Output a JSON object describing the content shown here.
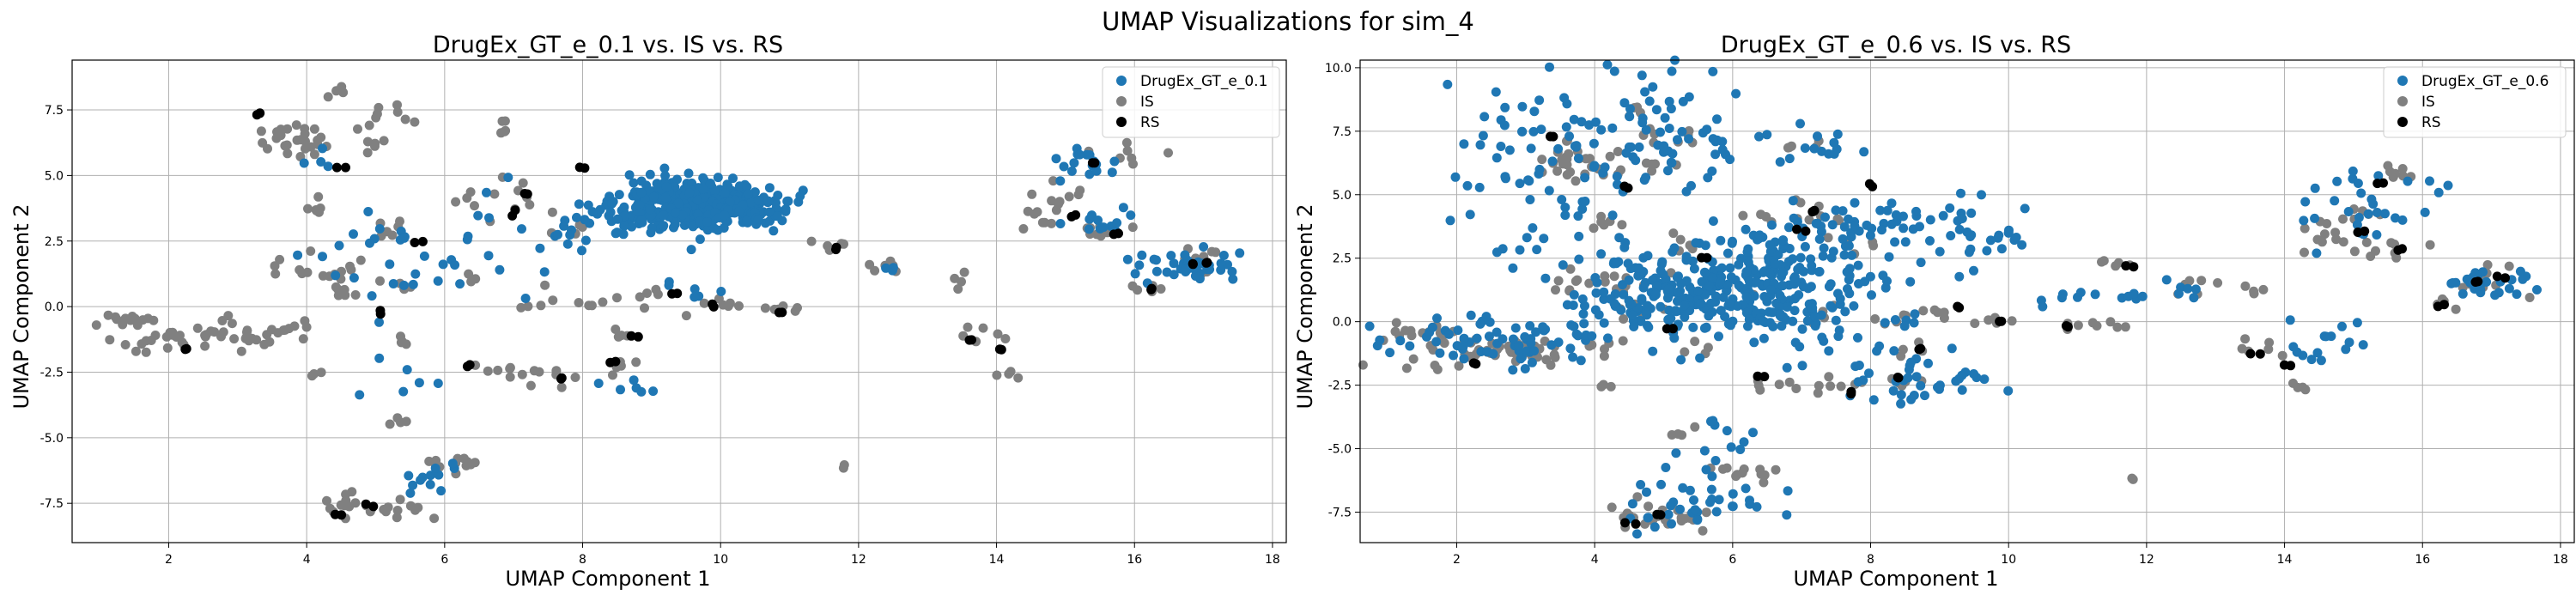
{
  "figure": {
    "title": "UMAP Visualizations for sim_4",
    "colors": {
      "primary": "#1f77b4",
      "IS": "#808080",
      "RS": "#000000"
    }
  },
  "chart_data": [
    {
      "type": "scatter",
      "title": "DrugEx_GT_e_0.1 vs. IS vs. RS",
      "xlabel": "UMAP Component 1",
      "ylabel": "UMAP Component 2",
      "xlim": [
        0.6,
        18.2
      ],
      "ylim": [
        -9.0,
        9.4
      ],
      "xticks": [
        2,
        4,
        6,
        8,
        10,
        12,
        14,
        16,
        18
      ],
      "yticks": [
        -7.5,
        -5.0,
        -2.5,
        0.0,
        2.5,
        5.0,
        7.5
      ],
      "grid": true,
      "legend": "top-right",
      "spread": 0.6,
      "series": [
        {
          "name": "DrugEx_GT_e_0.1",
          "color": "#1f77b4"
        },
        {
          "name": "IS",
          "color": "#808080"
        },
        {
          "name": "RS",
          "color": "#000000"
        }
      ]
    },
    {
      "type": "scatter",
      "title": "DrugEx_GT_e_0.6 vs. IS vs. RS",
      "xlabel": "UMAP Component 1",
      "ylabel": "UMAP Component 2",
      "xlim": [
        0.6,
        18.2
      ],
      "ylim": [
        -8.7,
        10.3
      ],
      "xticks": [
        2,
        4,
        6,
        8,
        10,
        12,
        14,
        16,
        18
      ],
      "yticks": [
        -7.5,
        -5.0,
        -2.5,
        0.0,
        2.5,
        5.0,
        7.5,
        10.0
      ],
      "grid": true,
      "legend": "top-right",
      "spread": 0.6,
      "series": [
        {
          "name": "DrugEx_GT_e_0.6",
          "color": "#1f77b4"
        },
        {
          "name": "IS",
          "color": "#808080"
        },
        {
          "name": "RS",
          "color": "#000000"
        }
      ]
    }
  ]
}
